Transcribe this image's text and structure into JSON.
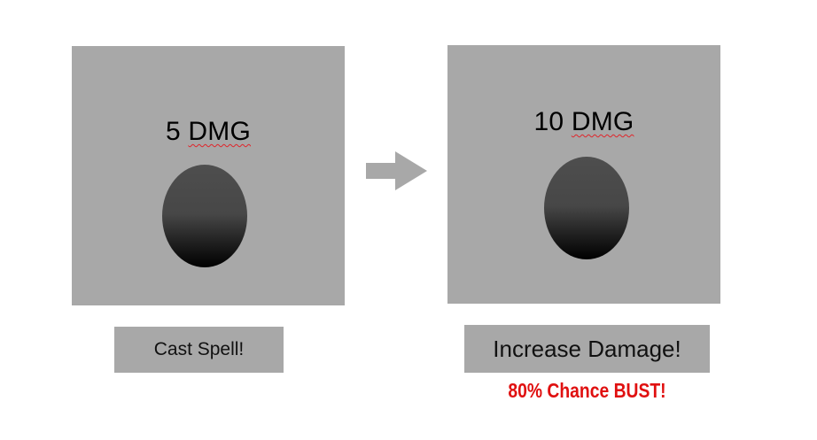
{
  "left_card": {
    "damage_value": "5",
    "damage_unit": "DMG"
  },
  "right_card": {
    "damage_value": "10",
    "damage_unit": "DMG"
  },
  "buttons": {
    "cast_label": "Cast Spell!",
    "increase_label": "Increase Damage!"
  },
  "warning_text": "80% Chance BUST!",
  "icons": {
    "transition": "arrow-right-icon"
  },
  "colors": {
    "panel": "#a8a8a8",
    "warning": "#e01010",
    "spellcheck": "#e0242a"
  }
}
